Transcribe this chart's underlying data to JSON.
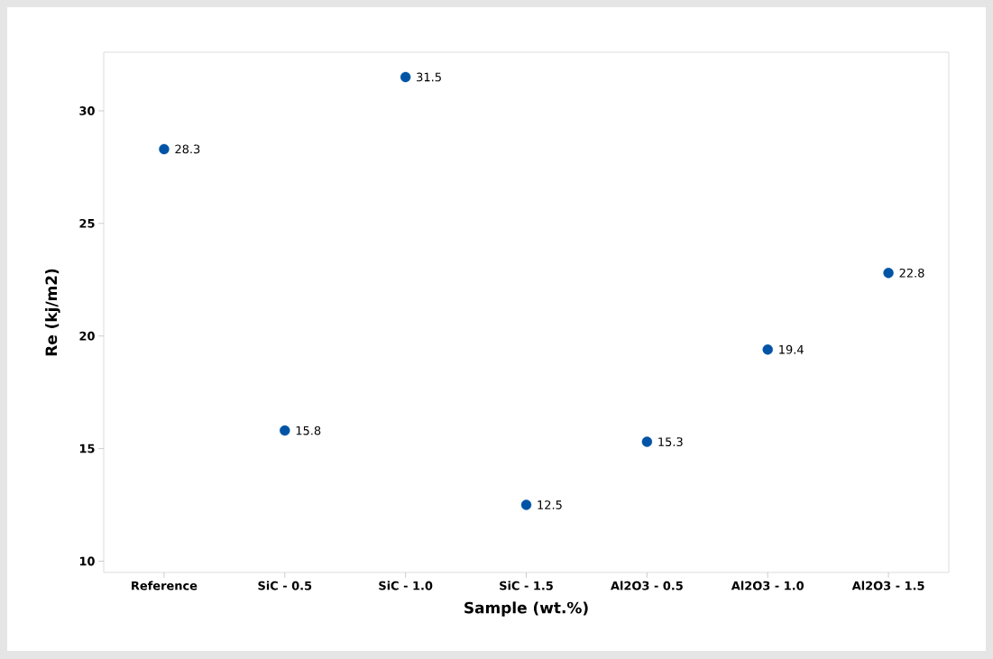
{
  "chart_data": {
    "type": "scatter",
    "xlabel": "Sample (wt.%)",
    "ylabel": "Re (kj/m2)",
    "categories": [
      "Reference",
      "SiC - 0.5",
      "SiC - 1.0",
      "SiC - 1.5",
      "Al2O3 - 0.5",
      "Al2O3 - 1.0",
      "Al2O3 - 1.5"
    ],
    "values": [
      28.3,
      15.8,
      31.5,
      12.5,
      15.3,
      19.4,
      22.8
    ],
    "color": "#0054a6",
    "data_labels": true,
    "grid": false,
    "ylim": [
      9.5,
      32.6
    ],
    "yticks": [
      10,
      15,
      20,
      25,
      30
    ]
  }
}
